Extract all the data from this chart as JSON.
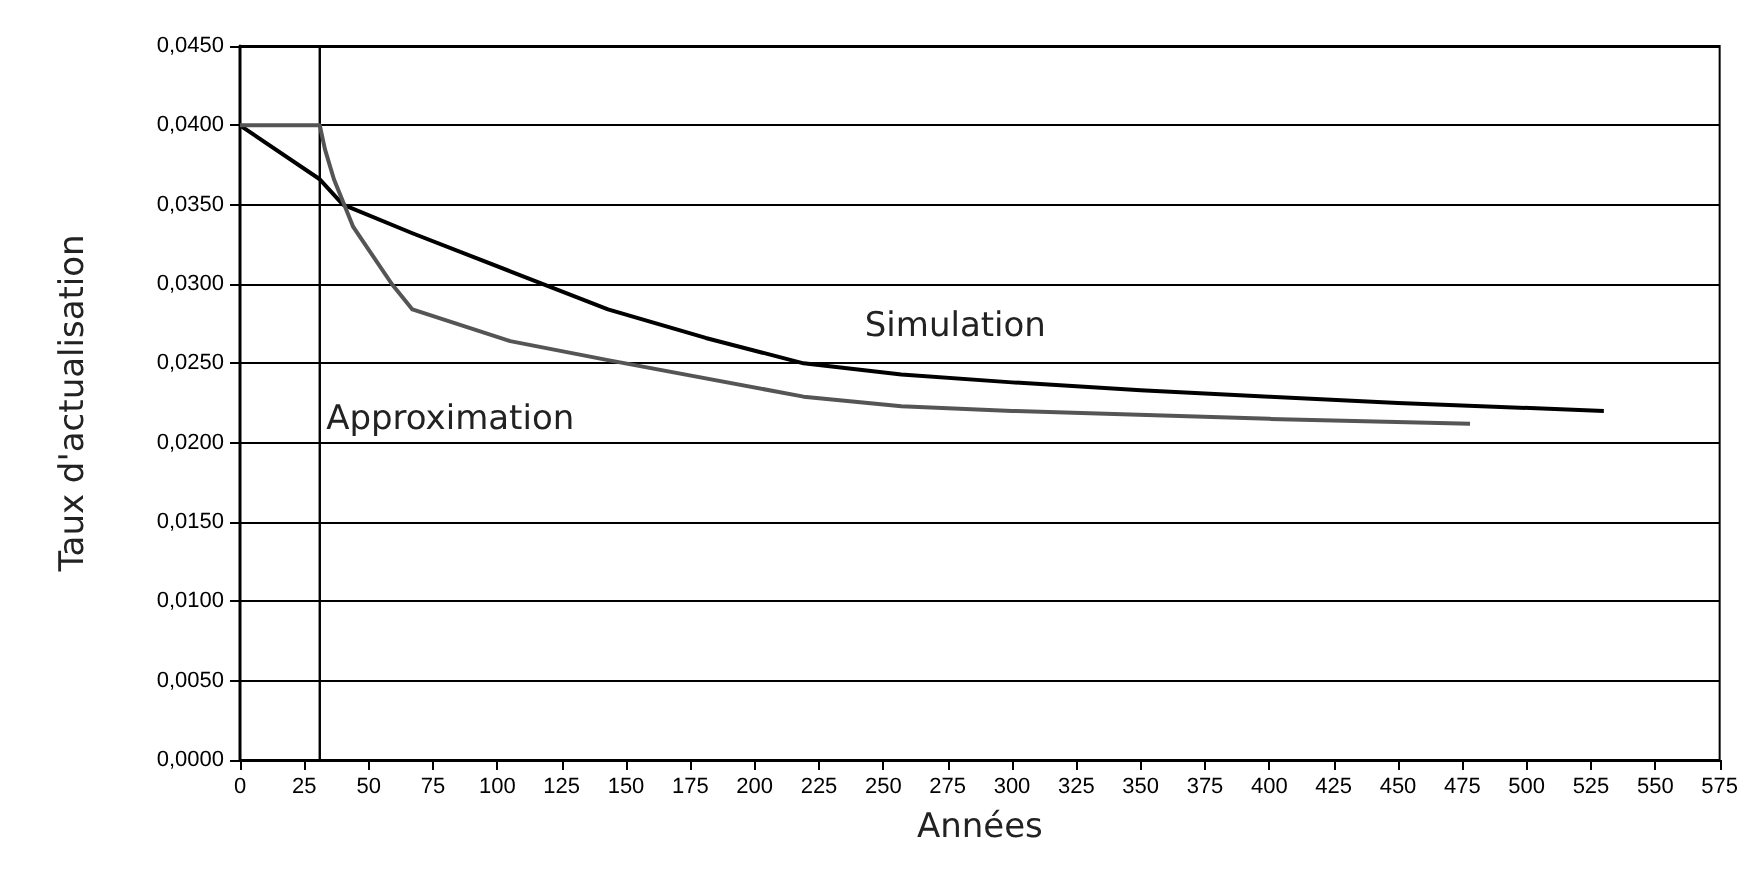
{
  "chart_data": {
    "type": "line",
    "xlabel": "Années",
    "ylabel": "Taux d'actualisation",
    "series": [
      {
        "name": "Simulation",
        "color": "#000000",
        "x": [
          0,
          31,
          40,
          67,
          105,
          143,
          181,
          219,
          257,
          300,
          350,
          400,
          450,
          530
        ],
        "values": [
          0.04,
          0.0366,
          0.035,
          0.0332,
          0.0308,
          0.0284,
          0.0266,
          0.025,
          0.0243,
          0.0238,
          0.0233,
          0.0229,
          0.0225,
          0.022
        ]
      },
      {
        "name": "Approximation",
        "color": "#555555",
        "x": [
          0,
          31,
          33,
          36.5,
          44,
          59,
          67,
          105,
          143,
          219,
          257,
          300,
          400,
          478
        ],
        "values": [
          0.04,
          0.04,
          0.0385,
          0.0366,
          0.0336,
          0.03,
          0.0284,
          0.0264,
          0.0252,
          0.0229,
          0.0223,
          0.022,
          0.0215,
          0.0212
        ]
      }
    ],
    "xlim": [
      0,
      575
    ],
    "xticks": [
      0,
      25,
      50,
      75,
      100,
      125,
      150,
      175,
      200,
      225,
      250,
      275,
      300,
      325,
      350,
      375,
      400,
      425,
      450,
      475,
      500,
      525,
      550,
      575
    ],
    "ylim": [
      0,
      0.045
    ],
    "yticks": [
      {
        "value": 0,
        "label": "0,0000"
      },
      {
        "value": 0.005,
        "label": "0,0050"
      },
      {
        "value": 0.01,
        "label": "0,0100"
      },
      {
        "value": 0.015,
        "label": "0,0150"
      },
      {
        "value": 0.02,
        "label": "0,0200"
      },
      {
        "value": 0.025,
        "label": "0,0250"
      },
      {
        "value": 0.03,
        "label": "0,0300"
      },
      {
        "value": 0.035,
        "label": "0,0350"
      },
      {
        "value": 0.04,
        "label": "0,0400"
      },
      {
        "value": 0.045,
        "label": "0,0450"
      }
    ],
    "ref_lines": [
      {
        "axis": "x",
        "value": 31,
        "color": "#000000"
      }
    ],
    "grid": "y",
    "legend": false,
    "marker": "none",
    "line_style": "solid"
  }
}
